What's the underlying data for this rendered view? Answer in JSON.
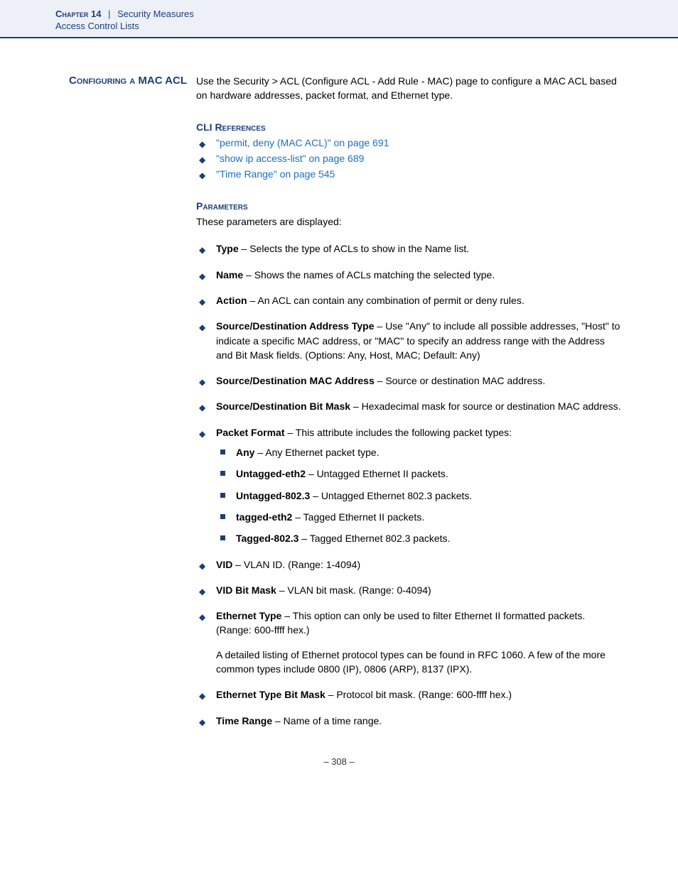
{
  "colors": {
    "brand_blue": "#1a3e7a",
    "link_blue": "#1a6fc4",
    "header_bg": "#eef0f8",
    "text": "#000000",
    "page_bg": "#ffffff"
  },
  "header": {
    "chapter_label": "Chapter 14",
    "separator": "|",
    "chapter_title": "Security Measures",
    "subsection": "Access Control Lists"
  },
  "section_title": "Configuring a MAC ACL",
  "intro": "Use the Security > ACL (Configure ACL - Add Rule - MAC) page to configure a MAC ACL based on hardware addresses, packet format, and Ethernet type.",
  "cli": {
    "heading": "CLI References",
    "items": [
      "\"permit, deny (MAC ACL)\" on page 691",
      "\"show ip access-list\" on page 689",
      "\"Time Range\" on page 545"
    ]
  },
  "params": {
    "heading": "Parameters",
    "intro": "These parameters are displayed:",
    "items": [
      {
        "term": "Type",
        "desc": " – Selects the type of ACLs to show in the Name list."
      },
      {
        "term": "Name",
        "desc": " – Shows the names of ACLs matching the selected type."
      },
      {
        "term": "Action",
        "desc": " – An ACL can contain any combination of permit or deny rules."
      },
      {
        "term": "Source/Destination Address Type",
        "desc": " – Use \"Any\" to include all possible addresses, \"Host\" to indicate a specific MAC address, or \"MAC\" to specify an address range with the Address and Bit Mask fields. (Options: Any, Host, MAC; Default: Any)"
      },
      {
        "term": "Source/Destination MAC Address",
        "desc": " – Source or destination MAC address."
      },
      {
        "term": "Source/Destination Bit Mask",
        "desc": " – Hexadecimal mask for source or destination MAC address."
      },
      {
        "term": "Packet Format",
        "desc": " – This attribute includes the following packet types:",
        "sub": [
          {
            "term": "Any",
            "desc": " – Any Ethernet packet type."
          },
          {
            "term": "Untagged-eth2",
            "desc": " – Untagged Ethernet II packets."
          },
          {
            "term": "Untagged-802.3",
            "desc": " – Untagged Ethernet 802.3 packets."
          },
          {
            "term": "tagged-eth2",
            "desc": " – Tagged Ethernet II packets."
          },
          {
            "term": "Tagged-802.3",
            "desc": " – Tagged Ethernet 802.3 packets."
          }
        ]
      },
      {
        "term": "VID",
        "desc": " – VLAN ID. (Range: 1-4094)"
      },
      {
        "term": "VID Bit Mask",
        "desc": " – VLAN bit mask. (Range: 0-4094)"
      },
      {
        "term": "Ethernet Type",
        "desc": " – This option can only be used to filter Ethernet II formatted packets. (Range: 600-ffff hex.)",
        "extra": "A detailed listing of Ethernet protocol types can be found in RFC 1060. A few of the more common types include 0800 (IP), 0806 (ARP), 8137 (IPX)."
      },
      {
        "term": "Ethernet Type Bit Mask",
        "desc": " – Protocol bit mask. (Range: 600-ffff hex.)"
      },
      {
        "term": "Time Range",
        "desc": " – Name of a time range."
      }
    ]
  },
  "footer": {
    "page_number": "–  308  –"
  }
}
